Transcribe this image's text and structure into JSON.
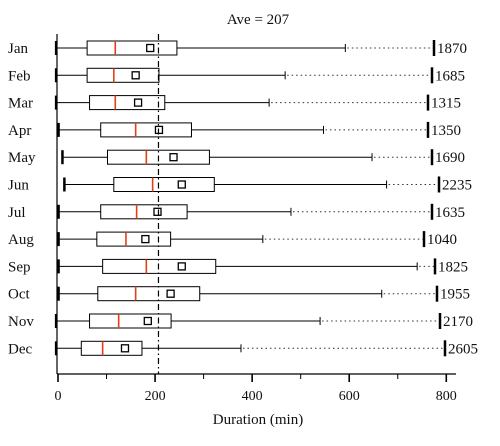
{
  "chart_data": {
    "type": "box",
    "title": "Ave = 207",
    "reference_line": 207,
    "xlabel": "Duration (min)",
    "xlim": [
      0,
      820
    ],
    "x_ticks": [
      "0",
      "200",
      "400",
      "600",
      "800"
    ],
    "grid": false,
    "colors": {
      "median": "#e0401a",
      "box": "#000000",
      "mean_marker": "#000000",
      "dotted_whisker": "#333333"
    },
    "rows": [
      {
        "month": "Jan",
        "whisker_low": 25,
        "q1": 60,
        "median": 118,
        "mean": 190,
        "q3": 245,
        "whisker_high": 592,
        "max": 1870,
        "max_label": "1870"
      },
      {
        "month": "Feb",
        "whisker_low": 25,
        "q1": 60,
        "median": 115,
        "mean": 160,
        "q3": 208,
        "whisker_high": 468,
        "max": 1685,
        "max_label": "1685"
      },
      {
        "month": "Mar",
        "whisker_low": 25,
        "q1": 65,
        "median": 118,
        "mean": 165,
        "q3": 220,
        "whisker_high": 435,
        "max": 1315,
        "max_label": "1315"
      },
      {
        "month": "Apr",
        "whisker_low": 30,
        "q1": 88,
        "median": 160,
        "mean": 208,
        "q3": 275,
        "whisker_high": 547,
        "max": 1350,
        "max_label": "1350"
      },
      {
        "month": "May",
        "whisker_low": 38,
        "q1": 102,
        "median": 182,
        "mean": 238,
        "q3": 312,
        "whisker_high": 647,
        "max": 1690,
        "max_label": "1690"
      },
      {
        "month": "Jun",
        "whisker_low": 42,
        "q1": 115,
        "median": 195,
        "mean": 255,
        "q3": 322,
        "whisker_high": 677,
        "max": 2235,
        "max_label": "2235"
      },
      {
        "month": "Jul",
        "whisker_low": 30,
        "q1": 88,
        "median": 162,
        "mean": 205,
        "q3": 266,
        "whisker_high": 480,
        "max": 1635,
        "max_label": "1635"
      },
      {
        "month": "Aug",
        "whisker_low": 30,
        "q1": 80,
        "median": 140,
        "mean": 180,
        "q3": 232,
        "whisker_high": 422,
        "max": 1040,
        "max_label": "1040"
      },
      {
        "month": "Sep",
        "whisker_low": 30,
        "q1": 92,
        "median": 182,
        "mean": 255,
        "q3": 325,
        "whisker_high": 740,
        "max": 1825,
        "max_label": "1825"
      },
      {
        "month": "Oct",
        "whisker_low": 30,
        "q1": 82,
        "median": 160,
        "mean": 232,
        "q3": 292,
        "whisker_high": 667,
        "max": 1955,
        "max_label": "1955"
      },
      {
        "month": "Nov",
        "whisker_low": 25,
        "q1": 65,
        "median": 125,
        "mean": 185,
        "q3": 233,
        "whisker_high": 540,
        "max": 2170,
        "max_label": "2170"
      },
      {
        "month": "Dec",
        "whisker_low": 25,
        "q1": 48,
        "median": 92,
        "mean": 138,
        "q3": 173,
        "whisker_high": 377,
        "max": 2605,
        "max_label": "2605"
      }
    ]
  }
}
